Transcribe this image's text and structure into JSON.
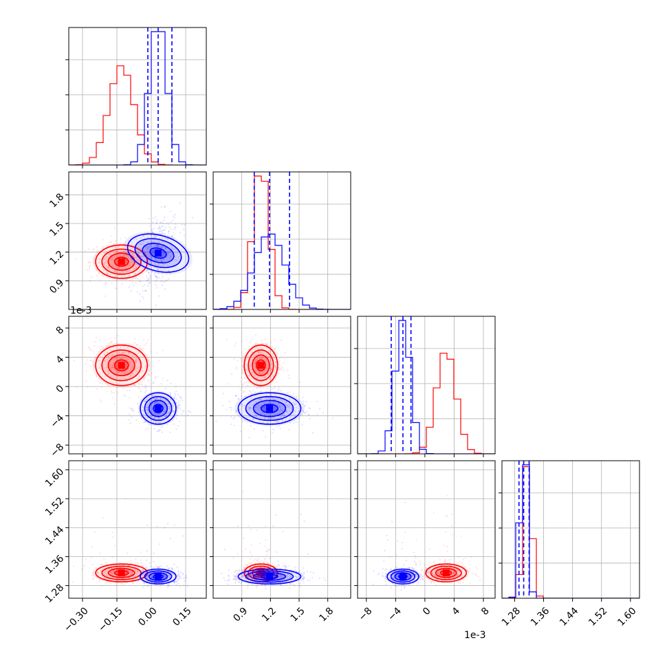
{
  "figure": {
    "colors": {
      "red": "#ff0000",
      "blue": "#0000ff",
      "grid": "#b0b0b0",
      "axes": "#000000"
    },
    "offset_labels": {
      "param3_y": "1e-3",
      "param3_x": "1e-3"
    }
  },
  "chart_data": {
    "type": "corner",
    "grid": true,
    "parameters": [
      {
        "range": [
          -0.36,
          0.24
        ],
        "ticks": [
          -0.3,
          -0.15,
          0.0,
          0.15
        ],
        "tick_labels": [
          "−0.30",
          "−0.15",
          "0.00",
          "0.15"
        ]
      },
      {
        "range": [
          0.6,
          2.04
        ],
        "ticks": [
          0.9,
          1.2,
          1.5,
          1.8
        ],
        "tick_labels": [
          "0.9",
          "1.2",
          "1.5",
          "1.8"
        ]
      },
      {
        "range": [
          -9.2,
          9.6
        ],
        "ticks": [
          -8,
          -4,
          0,
          4,
          8
        ],
        "tick_labels": [
          "−8",
          "−4",
          "0",
          "4",
          "8"
        ],
        "scale_label": "1e-3"
      },
      {
        "range": [
          1.245,
          1.625
        ],
        "ticks": [
          1.28,
          1.36,
          1.44,
          1.52,
          1.6
        ],
        "tick_labels": [
          "1.28",
          "1.36",
          "1.44",
          "1.52",
          "1.60"
        ]
      }
    ],
    "series": [
      {
        "color": "#ff0000",
        "means": [
          -0.13,
          1.1,
          2.9,
          1.315
        ],
        "sds": [
          0.055,
          0.085,
          1.35,
          0.012
        ],
        "corr": [
          [
            1,
            0,
            0,
            0
          ],
          [
            0,
            1,
            0,
            0
          ],
          [
            0,
            0,
            1,
            0
          ],
          [
            0,
            0,
            0,
            1
          ]
        ]
      },
      {
        "color": "#0000ff",
        "means": [
          0.03,
          1.19,
          -3.0,
          1.305
        ],
        "sds": [
          0.038,
          0.16,
          1.05,
          0.01
        ],
        "corr": [
          [
            1,
            0.35,
            0,
            0
          ],
          [
            0.35,
            1,
            0,
            0
          ],
          [
            0,
            0,
            1,
            0
          ],
          [
            0,
            0,
            0,
            1
          ]
        ],
        "quantiles": [
          [
            -0.015,
            0.03,
            0.09
          ],
          [
            1.03,
            1.19,
            1.4
          ],
          [
            -4.6,
            -3.0,
            -1.9
          ],
          [
            1.292,
            1.305,
            1.32
          ]
        ]
      }
    ]
  }
}
